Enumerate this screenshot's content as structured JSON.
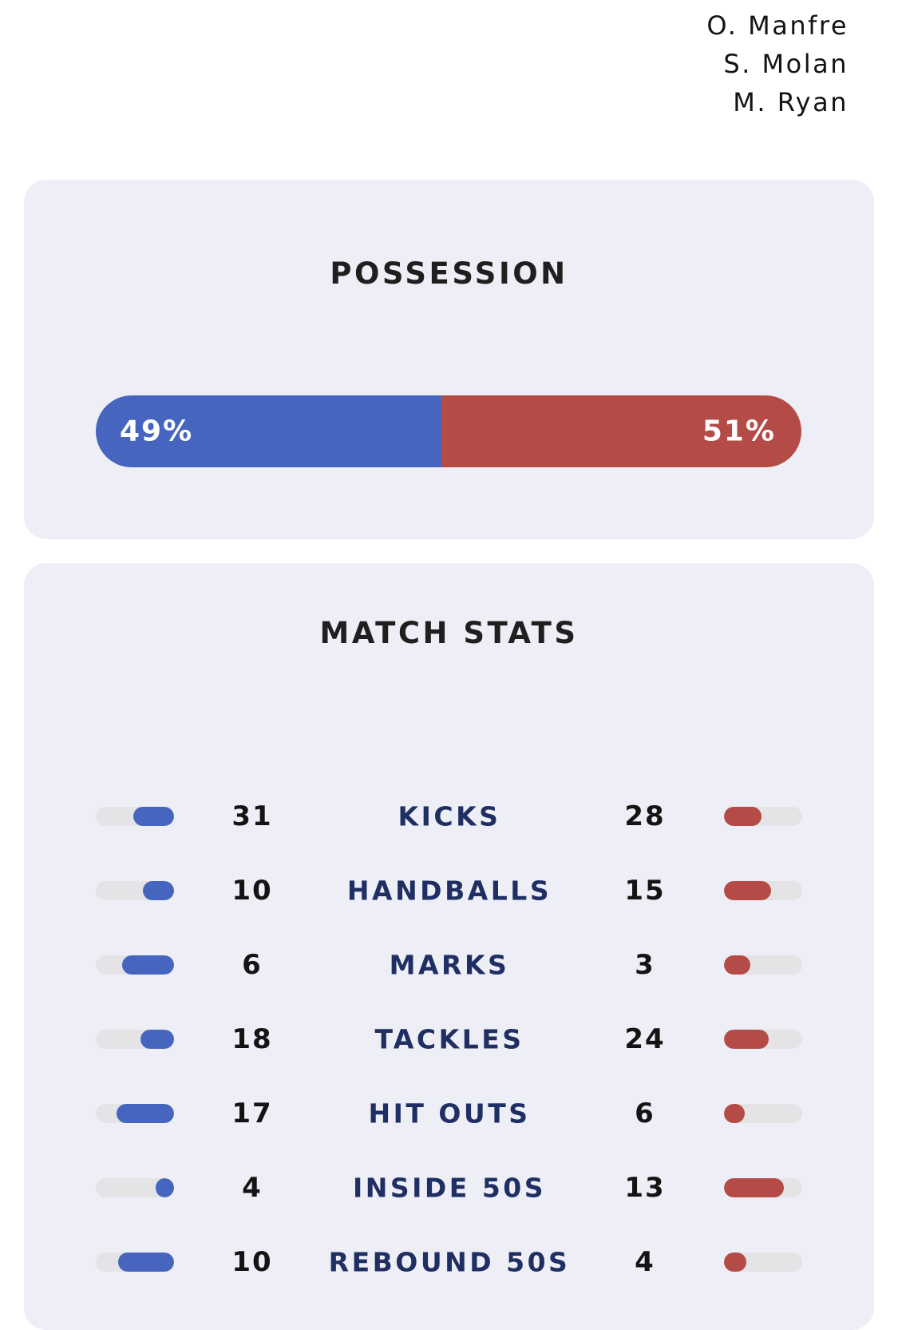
{
  "scorers": [
    "O. Manfre",
    "S. Molan",
    "M. Ryan"
  ],
  "colors": {
    "home": "#4665bf",
    "away": "#b54b47",
    "card_bg": "#eeeff6",
    "track": "#e4e4e6",
    "stat_label": "#1f2f63"
  },
  "possession": {
    "title": "POSSESSION",
    "home_pct": 49,
    "away_pct": 51,
    "home_label": "49%",
    "away_label": "51%"
  },
  "match_stats": {
    "title": "MATCH STATS",
    "rows": [
      {
        "label": "KICKS",
        "home": 31,
        "away": 28
      },
      {
        "label": "HANDBALLS",
        "home": 10,
        "away": 15
      },
      {
        "label": "MARKS",
        "home": 6,
        "away": 3
      },
      {
        "label": "TACKLES",
        "home": 18,
        "away": 24
      },
      {
        "label": "HIT OUTS",
        "home": 17,
        "away": 6
      },
      {
        "label": "INSIDE 50S",
        "home": 4,
        "away": 13
      },
      {
        "label": "REBOUND 50S",
        "home": 10,
        "away": 4
      }
    ]
  }
}
